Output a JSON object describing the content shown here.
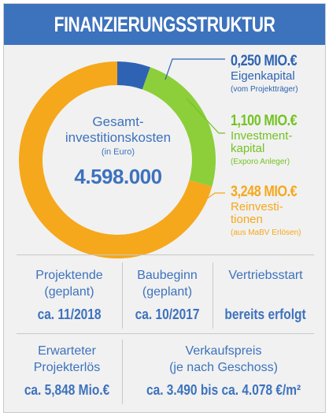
{
  "title": "FINANZIERUNGSSTRUKTUR",
  "center": {
    "line1": "Gesamt-",
    "line2": "investitionskosten",
    "unit": "(in Euro)",
    "total": "4.598.000"
  },
  "colors": {
    "blue": "#3d72bd",
    "green": "#74c322",
    "orange": "#f5a81c",
    "lightgreen": "#8ccf3a",
    "darkblue": "#2e63b3"
  },
  "chart_data": {
    "type": "pie",
    "categories": [
      "Eigenkapital",
      "Investmentkapital",
      "Reinvestitionen"
    ],
    "values": [
      0.25,
      1.1,
      3.248
    ],
    "unit": "Mio. €"
  },
  "legend": [
    {
      "value": "0,250 MIO.€",
      "label_lines": [
        "Eigenkapital"
      ],
      "sub": "(vom Projektträger)",
      "color": "#2e63b3"
    },
    {
      "value": "1,100 MIO.€",
      "label_lines": [
        "Investment-",
        "kapital"
      ],
      "sub": "(Exporo Anleger)",
      "color": "#74c322"
    },
    {
      "value": "3,248 MIO.€",
      "label_lines": [
        "Reinvesti-",
        "tionen"
      ],
      "sub": "(aus MaBV Erlösen)",
      "color": "#f5a81c"
    }
  ],
  "info": {
    "projektende": {
      "label1": "Projektende",
      "label2": "(geplant)",
      "value": "ca. 11/2018"
    },
    "baubeginn": {
      "label1": "Baubeginn",
      "label2": "(geplant)",
      "value": "ca. 10/2017"
    },
    "vertriebsstart": {
      "label1": "Vertriebsstart",
      "value": "bereits erfolgt"
    },
    "projekterloes": {
      "label1": "Erwarteter",
      "label2": "Projekterlös",
      "value": "ca. 5,848 Mio.€"
    },
    "verkaufspreis": {
      "label1": "Verkaufspreis",
      "label2": "(je nach Geschoss)",
      "value": "ca. 3.490 bis ca. 4.078 €/m²"
    }
  }
}
